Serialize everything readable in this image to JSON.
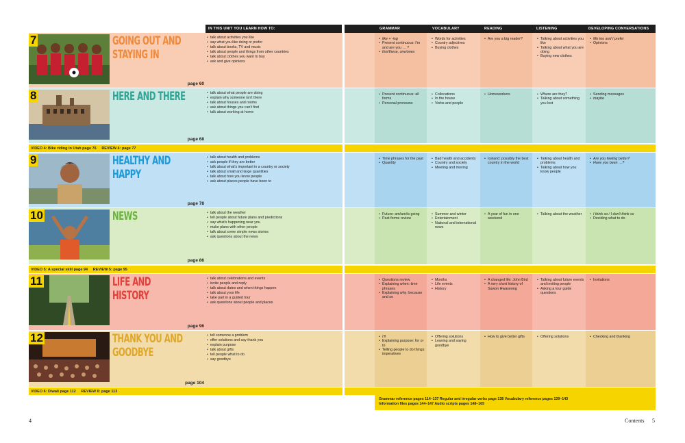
{
  "header": {
    "left": "IN THIS UNIT YOU LEARN HOW TO:",
    "cols": [
      "GRAMMAR",
      "VOCABULARY",
      "READING",
      "LISTENING",
      "DEVELOPING CONVERSATIONS"
    ]
  },
  "colors": {
    "yellow": "#f6d400",
    "u7": "#f9cdb4",
    "u8": "#cae9e2",
    "u9": "#bfe0f5",
    "u10": "#d9ecc6",
    "u11": "#f7b9ac",
    "u12": "#f2dcab"
  },
  "units": [
    {
      "num": "7",
      "title": "GOING OUT AND STAYING IN",
      "page": "page 60",
      "goals": [
        "talk about activities you like",
        "say what you like doing or prefer",
        "talk about books, TV and music",
        "talk about people and things from other countries",
        "talk about clothes you want to buy",
        "ask and give opinions"
      ],
      "grammar": [
        "like + -ing",
        "Present continuous: I'm and are you … ?",
        "this/these, one/ones"
      ],
      "vocab": [
        "Words for activities",
        "Country adjectives",
        "Buying clothes"
      ],
      "reading": [
        "Are you a big reader?"
      ],
      "listening": [
        "Talking about activities you like",
        "Talking about what you are doing",
        "Buying new clothes"
      ],
      "conv": [
        "Me too and I prefer",
        "Opinions"
      ]
    },
    {
      "num": "8",
      "title": "HERE AND THERE",
      "page": "page 68",
      "goals": [
        "talk about what people are doing",
        "explain why someone isn't there",
        "talk about houses and rooms",
        "ask about things you can't find",
        "talk about working at home"
      ],
      "grammar": [
        "Present continuous: all forms",
        "Personal pronouns"
      ],
      "vocab": [
        "Collocations",
        "In the house",
        "Verbs and people"
      ],
      "reading": [
        "Homeworkers"
      ],
      "listening": [
        "Where are they?",
        "Talking about something you lost"
      ],
      "conv": [
        "Sending messages",
        "maybe"
      ]
    },
    {
      "num": "9",
      "title": "HEALTHY AND HAPPY",
      "page": "page 78",
      "goals": [
        "talk about health and problems",
        "ask people if they are better",
        "talk about what's important in a country or society",
        "talk about small and large quantities",
        "talk about how you know people",
        "ask about places people have been to"
      ],
      "grammar": [
        "Time phrases for the past",
        "Quantity"
      ],
      "vocab": [
        "Bad health and accidents",
        "Country and society",
        "Meeting and moving"
      ],
      "reading": [
        "Iceland: possibly the best country in the world"
      ],
      "listening": [
        "Talking about health and problems",
        "Talking about how you know people"
      ],
      "conv": [
        "Are you feeling better?",
        "Have you been …?"
      ]
    },
    {
      "num": "10",
      "title": "NEWS",
      "page": "page 86",
      "goals": [
        "talk about the weather",
        "tell people about future plans and predictions",
        "say what's happening near you",
        "make plans with other people",
        "talk about some simple news stories",
        "ask questions about the news"
      ],
      "grammar": [
        "Future: am/are/is going",
        "Past forms review"
      ],
      "vocab": [
        "Summer and winter",
        "Entertainment",
        "National and international news"
      ],
      "reading": [
        "A year of fun in one weekend"
      ],
      "listening": [
        "Talking about the weather"
      ],
      "conv": [
        "I think so / I don't think so",
        "Deciding what to do"
      ]
    },
    {
      "num": "11",
      "title": "LIFE AND HISTORY",
      "page": "page 96",
      "goals": [
        "talk about celebrations and events",
        "invite people and reply",
        "talk about dates and when things happen",
        "talk about your life",
        "take part in a guided tour",
        "ask questions about people and places"
      ],
      "grammar": [
        "Questions review",
        "Explaining when: time phrases",
        "Explaining why: because and so"
      ],
      "vocab": [
        "Months",
        "Life events",
        "History"
      ],
      "reading": [
        "A changed life: John Bird",
        "A very short history of Suwon Hwaseong"
      ],
      "listening": [
        "Talking about future events and inviting people",
        "Asking a tour guide questions"
      ],
      "conv": [
        "Invitations"
      ]
    },
    {
      "num": "12",
      "title": "THANK YOU AND GOODBYE",
      "page": "page 104",
      "goals": [
        "tell someone a problem",
        "offer solutions and say thank you",
        "explain purpose",
        "talk about gifts",
        "tell people what to do",
        "say goodbye"
      ],
      "grammar": [
        "I'll",
        "Explaining purpose: for or to",
        "Telling people to do things: imperatives"
      ],
      "vocab": [
        "Offering solutions",
        "Leaving and saying goodbye"
      ],
      "reading": [
        "How to give better gifts"
      ],
      "listening": [
        "Offering solutions"
      ],
      "conv": [
        "Checking and thanking"
      ]
    }
  ],
  "video_bars": [
    {
      "video": "VIDEO 4: Bike riding in Utah page 76",
      "review": "REVIEW 4: page 77"
    },
    {
      "video": "VIDEO 5: A special skill page 94",
      "review": "REVIEW 5: page 95"
    },
    {
      "video": "VIDEO 6: Diwali page 112",
      "review": "REVIEW 6: page 113"
    }
  ],
  "footer": {
    "line1": "Grammar reference pages 114–137   Regular and irregular verbs page 138   Vocabulary reference pages 139–143",
    "line2": "Information files pages 144–147   Audio scripts pages 148–165"
  },
  "page_left": "4",
  "page_right_label": "Contents",
  "page_right": "5"
}
